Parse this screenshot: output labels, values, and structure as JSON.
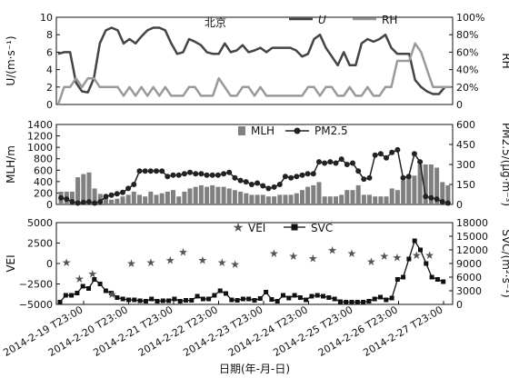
{
  "chart_data": [
    {
      "type": "line",
      "title": "北京",
      "ylabel_left": "U/(m·s⁻¹)",
      "ylabel_right": "RH",
      "ylim_left": [
        0,
        10
      ],
      "yticks_left": [
        "0",
        "2",
        "4",
        "6",
        "8",
        "10"
      ],
      "ylim_right": [
        0,
        100
      ],
      "yticks_right": [
        "0",
        "20%",
        "40%",
        "60%",
        "80%",
        "100%"
      ],
      "legend": "top-right",
      "series": [
        {
          "name": "U",
          "axis": "left",
          "color": "#444444",
          "values": [
            5.8,
            6.0,
            6.0,
            2.5,
            1.5,
            1.4,
            3.0,
            7.0,
            8.5,
            8.8,
            8.5,
            7.0,
            7.5,
            7.0,
            7.8,
            8.5,
            8.8,
            8.8,
            8.5,
            7.0,
            5.8,
            6.0,
            7.5,
            7.2,
            6.8,
            6.0,
            5.8,
            5.8,
            7.0,
            6.0,
            6.2,
            6.8,
            6.0,
            6.2,
            6.5,
            6.0,
            6.5,
            6.5,
            6.5,
            6.5,
            6.2,
            5.5,
            5.8,
            7.5,
            8.0,
            6.5,
            5.5,
            4.5,
            6.0,
            4.5,
            4.5,
            7.0,
            7.5,
            7.2,
            7.5,
            8.0,
            6.5,
            5.8,
            5.8,
            5.8,
            2.8,
            2.0,
            1.5,
            1.2,
            1.2,
            2.0,
            2.0
          ]
        },
        {
          "name": "RH",
          "axis": "right",
          "color": "#999999",
          "values": [
            0,
            20,
            20,
            30,
            20,
            30,
            30,
            20,
            20,
            20,
            20,
            10,
            20,
            10,
            20,
            10,
            20,
            10,
            20,
            10,
            10,
            10,
            20,
            20,
            10,
            10,
            10,
            30,
            20,
            10,
            10,
            20,
            20,
            10,
            20,
            10,
            10,
            10,
            10,
            10,
            10,
            10,
            20,
            20,
            10,
            20,
            20,
            10,
            10,
            20,
            10,
            10,
            20,
            10,
            10,
            20,
            20,
            50,
            50,
            50,
            70,
            60,
            40,
            20,
            20,
            20,
            20
          ]
        }
      ]
    },
    {
      "type": "bar",
      "ylabel_left": "MLH/m",
      "ylabel_right": "PM2.5/(μg·m⁻³)",
      "ylim_left": [
        0,
        2500
      ],
      "yticks_left": [
        "0",
        "200",
        "400",
        "600",
        "800",
        "1000",
        "1200",
        "1400"
      ],
      "ylim_right": [
        0,
        600
      ],
      "yticks_right": [
        "0",
        "150",
        "300",
        "450",
        "600"
      ],
      "legend": "top-right",
      "series": [
        {
          "name": "MLH",
          "axis": "left",
          "kind": "bar",
          "color": "#808080",
          "values": [
            400,
            400,
            400,
            850,
            950,
            1000,
            500,
            330,
            200,
            150,
            180,
            250,
            300,
            400,
            300,
            250,
            400,
            300,
            350,
            400,
            450,
            250,
            400,
            500,
            550,
            600,
            550,
            600,
            550,
            550,
            500,
            450,
            400,
            350,
            300,
            300,
            300,
            250,
            250,
            300,
            300,
            300,
            350,
            450,
            550,
            600,
            700,
            250,
            250,
            250,
            300,
            450,
            450,
            600,
            300,
            300,
            250,
            250,
            250,
            500,
            450,
            750,
            850,
            900,
            1250,
            1250,
            1250,
            1150,
            700,
            600
          ]
        },
        {
          "name": "PM2.5",
          "axis": "right",
          "kind": "line",
          "color": "#222222",
          "values": [
            50,
            40,
            20,
            10,
            15,
            20,
            10,
            20,
            60,
            70,
            80,
            90,
            120,
            150,
            250,
            250,
            250,
            250,
            250,
            210,
            220,
            220,
            230,
            240,
            230,
            230,
            220,
            220,
            220,
            230,
            240,
            200,
            180,
            170,
            150,
            160,
            140,
            120,
            130,
            150,
            210,
            200,
            210,
            220,
            230,
            230,
            320,
            310,
            320,
            310,
            340,
            300,
            310,
            250,
            190,
            200,
            370,
            380,
            350,
            390,
            410,
            200,
            210,
            380,
            320,
            60,
            50,
            40,
            20,
            10
          ]
        }
      ]
    },
    {
      "type": "scatter",
      "ylabel_left": "VEI",
      "ylabel_right": "SVC/(m²·s⁻¹)",
      "ylim_left": [
        -5000,
        5000
      ],
      "yticks_left": [
        "−5000",
        "−2500",
        "0",
        "2500",
        "5000"
      ],
      "ylim_right": [
        0,
        18000
      ],
      "yticks_right": [
        "0",
        "3000",
        "6000",
        "9000",
        "12000",
        "15000",
        "18000"
      ],
      "legend": "top-center",
      "series": [
        {
          "name": "VEI",
          "axis": "left",
          "kind": "star",
          "color": "#555555",
          "points": [
            [
              1,
              100
            ],
            [
              3,
              -1900
            ],
            [
              5,
              -1300
            ],
            [
              8,
              -3800
            ],
            [
              11,
              0
            ],
            [
              14,
              100
            ],
            [
              17,
              400
            ],
            [
              19,
              1400
            ],
            [
              22,
              400
            ],
            [
              25,
              100
            ],
            [
              27,
              -100
            ],
            [
              33,
              1200
            ],
            [
              36,
              900
            ],
            [
              39,
              600
            ],
            [
              42,
              1600
            ],
            [
              45,
              1200
            ],
            [
              48,
              200
            ],
            [
              50,
              900
            ],
            [
              52,
              700
            ],
            [
              55,
              1000
            ],
            [
              57,
              1000
            ]
          ]
        },
        {
          "name": "SVC",
          "axis": "right",
          "kind": "line-square",
          "color": "#111111",
          "x": [
            0,
            0.5,
            1,
            1.5,
            2,
            2.5,
            3,
            3.5,
            4,
            4.5,
            5,
            5.5,
            6,
            6.5,
            7,
            7.5,
            8,
            8.5,
            9,
            9.5,
            10,
            10.5,
            11,
            11.5,
            12,
            12.5,
            13,
            13.5,
            14,
            14.5,
            15,
            15.5,
            16,
            16.5,
            17,
            17.5,
            18,
            18.5,
            19,
            19.5,
            20,
            20.5,
            21,
            21.5,
            22,
            22.5,
            23,
            23.5,
            24,
            24.5,
            25,
            25.5,
            26,
            26.5,
            27,
            27.5,
            28,
            28.5,
            29,
            29.5,
            30,
            30.5,
            31,
            31.5,
            32,
            32.5,
            33,
            33.5
          ],
          "values": [
            500,
            2000,
            2000,
            2500,
            4000,
            3500,
            5500,
            4500,
            3000,
            2500,
            1500,
            1200,
            1000,
            1000,
            800,
            700,
            1200,
            700,
            800,
            800,
            1200,
            700,
            900,
            900,
            1800,
            1200,
            1200,
            2000,
            3000,
            2400,
            1000,
            900,
            1200,
            1200,
            900,
            1300,
            2700,
            1100,
            700,
            2000,
            1400,
            2000,
            1500,
            1000,
            1800,
            2000,
            1800,
            1500,
            1200,
            600,
            500,
            500,
            500,
            500,
            700,
            1200,
            1600,
            1000,
            1400,
            5500,
            6000,
            10000,
            14000,
            12000,
            9000,
            6000,
            5500,
            5000
          ]
        }
      ],
      "xlabel": "日期(年-月-日)",
      "xticks": [
        "2014-2-19 T23:00",
        "2014-2-20 T23:00",
        "2014-2-21 T23:00",
        "2014-2-22 T23:00",
        "2014-2-23 T23:00",
        "2014-2-24 T23:00",
        "2014-2-25 T23:00",
        "2014-2-26 T23:00",
        "2014-2-27 T23:00"
      ]
    }
  ]
}
